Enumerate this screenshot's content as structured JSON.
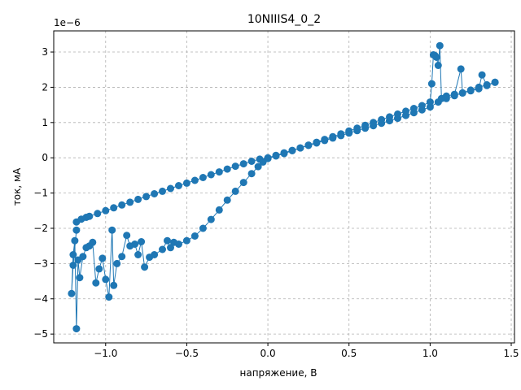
{
  "chart_data": {
    "type": "line",
    "title": "10NIIIS4_0_2",
    "xlabel": "напряжение, В",
    "ylabel": "ток, мА",
    "offset_text": "1e−6",
    "xlim": [
      -1.32,
      1.52
    ],
    "ylim": [
      -5.25e-06,
      3.6e-06
    ],
    "xticks": [
      -1.0,
      -0.5,
      0.0,
      0.5,
      1.0,
      1.5
    ],
    "xtick_labels": [
      "−1.0",
      "−0.5",
      "0.0",
      "0.5",
      "1.0",
      "1.5"
    ],
    "yticks": [
      -5e-06,
      -4e-06,
      -3e-06,
      -2e-06,
      -1e-06,
      0,
      1e-06,
      2e-06,
      3e-06
    ],
    "ytick_labels": [
      "−5",
      "−4",
      "−3",
      "−2",
      "−1",
      "0",
      "1",
      "2",
      "3"
    ],
    "grid": true,
    "color": "#1f77b4",
    "series": [
      {
        "x": [
          -1.18,
          -1.15,
          -1.12,
          -1.1,
          -1.05,
          -1.0,
          -0.95,
          -0.9,
          -0.85,
          -0.8,
          -0.75,
          -0.7,
          -0.65,
          -0.6,
          -0.55,
          -0.5,
          -0.45,
          -0.4,
          -0.35,
          -0.3,
          -0.25,
          -0.2,
          -0.15,
          -0.1,
          -0.05,
          0.0,
          0.05,
          0.1,
          0.15,
          0.2,
          0.25,
          0.3,
          0.35,
          0.4,
          0.45,
          0.5,
          0.55,
          0.6,
          0.65,
          0.7,
          0.75,
          0.8,
          0.85,
          0.9,
          0.95,
          1.0,
          1.05,
          1.1,
          1.15,
          1.2,
          1.25,
          1.3,
          1.35,
          1.4
        ],
        "y": [
          -1.82e-06,
          -1.74e-06,
          -1.69e-06,
          -1.66e-06,
          -1.58e-06,
          -1.5e-06,
          -1.42e-06,
          -1.34e-06,
          -1.26e-06,
          -1.18e-06,
          -1.1e-06,
          -1.02e-06,
          -9.5e-07,
          -8.7e-07,
          -7.9e-07,
          -7.2e-07,
          -6.4e-07,
          -5.6e-07,
          -4.8e-07,
          -4e-07,
          -3.2e-07,
          -2.4e-07,
          -1.7e-07,
          -1e-07,
          -4e-08,
          0.0,
          7e-08,
          1.4e-07,
          2.1e-07,
          2.8e-07,
          3.5e-07,
          4.2e-07,
          4.9e-07,
          5.6e-07,
          6.3e-07,
          7e-07,
          7.7e-07,
          8.4e-07,
          9.1e-07,
          9.8e-07,
          1.05e-06,
          1.12e-06,
          1.2e-06,
          1.28e-06,
          1.36e-06,
          1.44e-06,
          1.58e-06,
          1.68e-06,
          1.76e-06,
          1.84e-06,
          1.92e-06,
          2e-06,
          2.07e-06,
          2.14e-06
        ]
      },
      {
        "x": [
          1.4,
          1.35,
          1.32,
          1.3,
          1.25,
          1.2,
          1.19,
          1.15,
          1.1,
          1.07,
          1.06,
          1.05,
          1.04,
          1.03,
          1.02,
          1.01,
          1.0,
          0.95,
          0.9,
          0.85,
          0.8,
          0.75,
          0.7,
          0.65,
          0.6,
          0.55,
          0.5,
          0.45,
          0.4,
          0.35,
          0.3,
          0.25,
          0.2,
          0.15,
          0.1,
          0.05,
          0.0,
          -0.03,
          -0.06,
          -0.1,
          -0.15,
          -0.2,
          -0.25,
          -0.3,
          -0.35,
          -0.4,
          -0.45,
          -0.5,
          -0.55,
          -0.58,
          -0.6,
          -0.62,
          -0.65,
          -0.7,
          -0.73,
          -0.76,
          -0.78,
          -0.8,
          -0.82,
          -0.85,
          -0.87,
          -0.9,
          -0.93,
          -0.95,
          -0.96,
          -0.98,
          -1.0,
          -1.02,
          -1.04,
          -1.06,
          -1.08,
          -1.1,
          -1.12,
          -1.14,
          -1.16,
          -1.17,
          -1.18,
          -1.19,
          -1.2,
          -1.21,
          -1.2,
          -1.18
        ],
        "y": [
          2.14e-06,
          2.05e-06,
          2.35e-06,
          1.96e-06,
          1.9e-06,
          1.84e-06,
          2.52e-06,
          1.8e-06,
          1.75e-06,
          1.68e-06,
          3.18e-06,
          2.62e-06,
          2.85e-06,
          2.9e-06,
          2.92e-06,
          2.1e-06,
          1.58e-06,
          1.48e-06,
          1.4e-06,
          1.32e-06,
          1.24e-06,
          1.16e-06,
          1.08e-06,
          1e-06,
          9.2e-07,
          8.4e-07,
          7.6e-07,
          6.8e-07,
          6e-07,
          5.2e-07,
          4.4e-07,
          3.6e-07,
          2.8e-07,
          2e-07,
          1.2e-07,
          5e-08,
          -2e-08,
          -1.2e-07,
          -2.5e-07,
          -4.5e-07,
          -7e-07,
          -9.5e-07,
          -1.2e-06,
          -1.48e-06,
          -1.75e-06,
          -2e-06,
          -2.22e-06,
          -2.35e-06,
          -2.45e-06,
          -2.4e-06,
          -2.55e-06,
          -2.35e-06,
          -2.6e-06,
          -2.75e-06,
          -2.82e-06,
          -3.1e-06,
          -2.38e-06,
          -2.75e-06,
          -2.45e-06,
          -2.5e-06,
          -2.2e-06,
          -2.8e-06,
          -3e-06,
          -3.62e-06,
          -2.05e-06,
          -3.95e-06,
          -3.45e-06,
          -2.85e-06,
          -3.15e-06,
          -3.55e-06,
          -2.4e-06,
          -2.5e-06,
          -2.55e-06,
          -2.8e-06,
          -3.4e-06,
          -2.9e-06,
          -4.85e-06,
          -2.35e-06,
          -2.75e-06,
          -3.85e-06,
          -3.05e-06,
          -2.05e-06
        ]
      }
    ]
  }
}
